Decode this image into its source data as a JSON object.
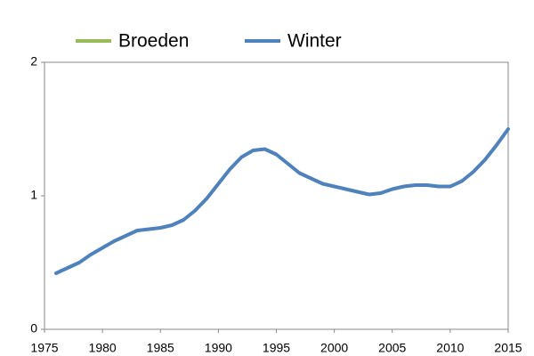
{
  "chart_data": {
    "type": "line",
    "x": [
      1976,
      1977,
      1978,
      1979,
      1980,
      1981,
      1982,
      1983,
      1984,
      1985,
      1986,
      1987,
      1988,
      1989,
      1990,
      1991,
      1992,
      1993,
      1994,
      1995,
      1996,
      1997,
      1998,
      1999,
      2000,
      2001,
      2002,
      2003,
      2004,
      2005,
      2006,
      2007,
      2008,
      2009,
      2010,
      2011,
      2012,
      2013,
      2014,
      2015
    ],
    "series": [
      {
        "name": "Broeden",
        "color": "#9bbb59",
        "values": [
          null,
          null,
          null,
          null,
          null,
          null,
          null,
          null,
          null,
          null,
          null,
          null,
          null,
          null,
          null,
          null,
          null,
          null,
          null,
          null,
          null,
          null,
          null,
          null,
          null,
          null,
          null,
          null,
          null,
          null,
          null,
          null,
          null,
          null,
          null,
          null,
          null,
          null,
          null,
          null
        ]
      },
      {
        "name": "Winter",
        "color": "#4f81bd",
        "values": [
          0.42,
          0.46,
          0.5,
          0.56,
          0.61,
          0.66,
          0.7,
          0.74,
          0.75,
          0.76,
          0.78,
          0.82,
          0.89,
          0.98,
          1.09,
          1.2,
          1.29,
          1.34,
          1.35,
          1.31,
          1.24,
          1.17,
          1.13,
          1.09,
          1.07,
          1.05,
          1.03,
          1.01,
          1.02,
          1.05,
          1.07,
          1.08,
          1.08,
          1.07,
          1.07,
          1.11,
          1.18,
          1.27,
          1.38,
          1.5
        ]
      }
    ],
    "xlim": [
      1975,
      2015
    ],
    "xticks": [
      1975,
      1980,
      1985,
      1990,
      1995,
      2000,
      2005,
      2010,
      2015
    ],
    "ylim": [
      0,
      2
    ],
    "yticks": [
      0,
      1,
      2
    ],
    "grid": false
  }
}
